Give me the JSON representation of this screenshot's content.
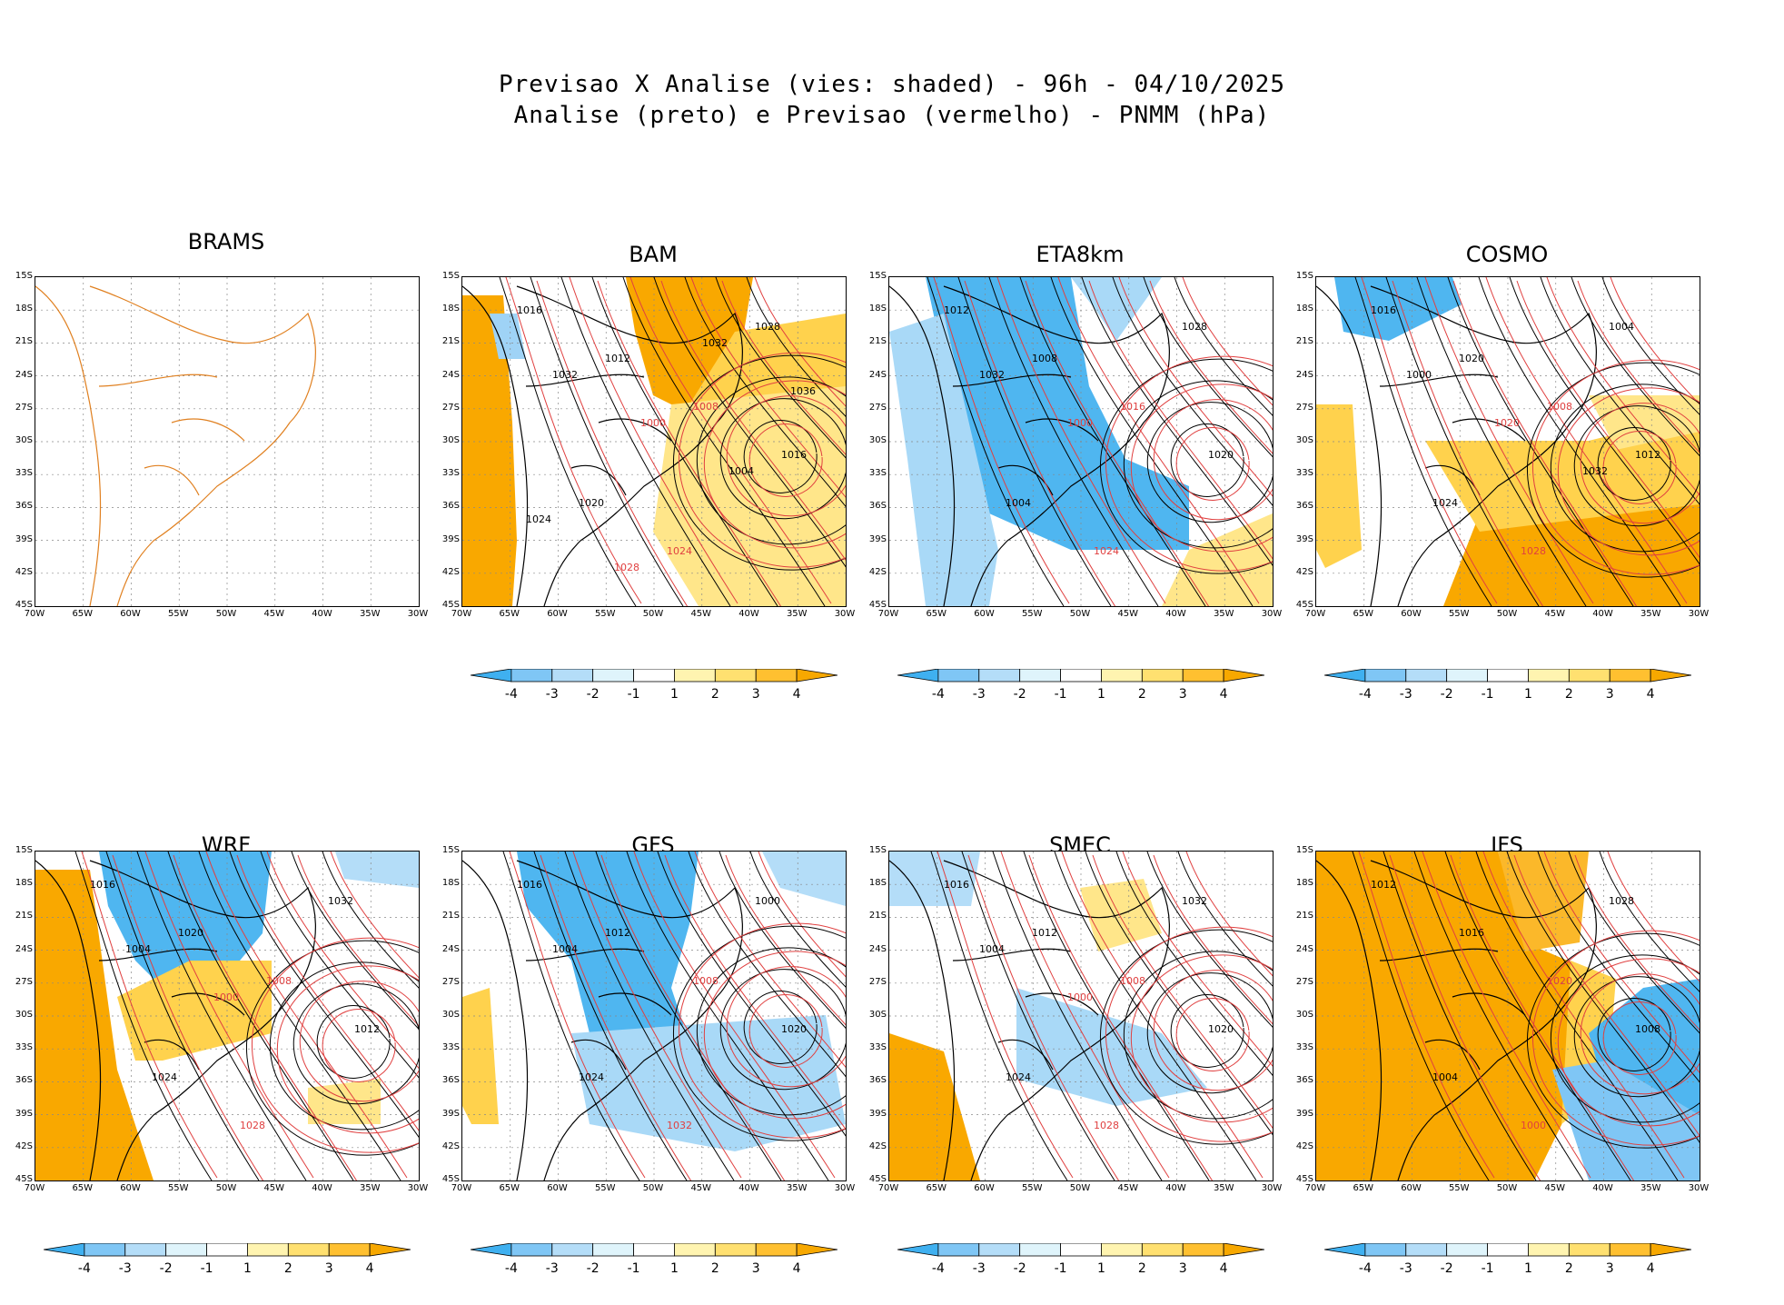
{
  "header": {
    "line1": "Previsao X Analise (vies: shaded) - 96h - 04/10/2025",
    "line2": "Analise (preto) e Previsao (vermelho) - PNMM (hPa)"
  },
  "axes": {
    "lat_labels": [
      "15S",
      "18S",
      "21S",
      "24S",
      "27S",
      "30S",
      "33S",
      "36S",
      "39S",
      "42S",
      "45S"
    ],
    "lon_labels": [
      "70W",
      "65W",
      "60W",
      "55W",
      "50W",
      "45W",
      "40W",
      "35W",
      "30W"
    ]
  },
  "colorbar": {
    "labels": [
      "-4",
      "-3",
      "-2",
      "-1",
      "1",
      "2",
      "3",
      "4"
    ],
    "colors": [
      "#3fb0f0",
      "#7fc6f5",
      "#b4ddf8",
      "#dff4fb",
      "#ffffff",
      "#fff4b0",
      "#ffe070",
      "#ffc030",
      "#f7a800"
    ]
  },
  "colors": {
    "negative_bias": "#45b0ee",
    "positive_bias": "#f9a800",
    "analysis_contour": "#000000",
    "forecast_contour": "#e04040",
    "coast": "#e08020"
  },
  "panels": [
    {
      "name": "BRAMS",
      "has_data": false,
      "labels": []
    },
    {
      "name": "BAM",
      "has_data": true,
      "labels": [
        "1016",
        "1012",
        "1008",
        "1016",
        "1020",
        "1024",
        "1028",
        "1032",
        "1000",
        "1004",
        "1024",
        "1028",
        "1032",
        "1036"
      ]
    },
    {
      "name": "ETA8km",
      "has_data": true,
      "labels": [
        "1012",
        "1008",
        "1016",
        "1020",
        "1004",
        "1024",
        "1028",
        "1032",
        "1000"
      ]
    },
    {
      "name": "COSMO",
      "has_data": true,
      "labels": [
        "1016",
        "1020",
        "1008",
        "1012",
        "1024",
        "1028",
        "1004",
        "1000",
        "1020",
        "1032"
      ]
    },
    {
      "name": "WRF",
      "has_data": true,
      "labels": [
        "1016",
        "1020",
        "1008",
        "1012",
        "1024",
        "1028",
        "1032",
        "1004",
        "1000"
      ]
    },
    {
      "name": "GFS",
      "has_data": true,
      "labels": [
        "1016",
        "1012",
        "1008",
        "1020",
        "1024",
        "1032",
        "1000",
        "1004"
      ]
    },
    {
      "name": "SMEC",
      "has_data": true,
      "labels": [
        "1016",
        "1012",
        "1008",
        "1020",
        "1024",
        "1028",
        "1032",
        "1004",
        "1000"
      ]
    },
    {
      "name": "IFS",
      "has_data": true,
      "labels": [
        "1012",
        "1016",
        "1020",
        "1008",
        "1004",
        "1000",
        "1028"
      ]
    }
  ]
}
